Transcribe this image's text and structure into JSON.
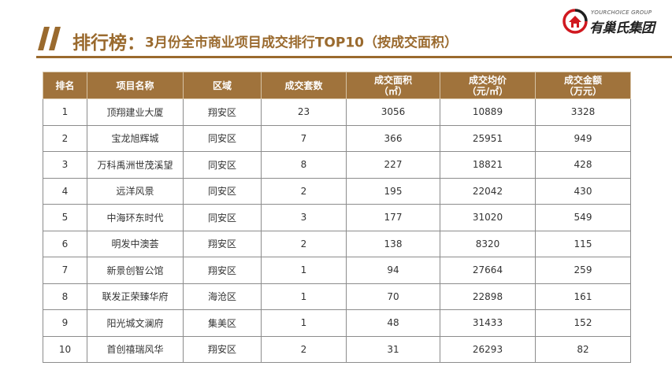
{
  "header": {
    "title_main": "排行榜：",
    "title_sub": "3月份全市商业项目成交排行TOP10（按成交面积）"
  },
  "logo": {
    "english": "YOURCHOICE GROUP",
    "chinese": "有巢氏集团"
  },
  "colors": {
    "brand": "#9a6a2e",
    "header_fill": "#a0733c",
    "logo_red": "#d0181f"
  },
  "table": {
    "columns": [
      {
        "line1": "排名",
        "line2": ""
      },
      {
        "line1": "项目名称",
        "line2": ""
      },
      {
        "line1": "区域",
        "line2": ""
      },
      {
        "line1": "成交套数",
        "line2": ""
      },
      {
        "line1": "成交面积",
        "line2": "（㎡）"
      },
      {
        "line1": "成交均价",
        "line2": "（元/㎡）"
      },
      {
        "line1": "成交金额",
        "line2": "（万元）"
      }
    ],
    "rows": [
      [
        "1",
        "顶翔建业大厦",
        "翔安区",
        "23",
        "3056",
        "10889",
        "3328"
      ],
      [
        "2",
        "宝龙旭辉城",
        "同安区",
        "7",
        "366",
        "25951",
        "949"
      ],
      [
        "3",
        "万科禹洲世茂溪望",
        "同安区",
        "8",
        "227",
        "18821",
        "428"
      ],
      [
        "4",
        "远洋风景",
        "同安区",
        "2",
        "195",
        "22042",
        "430"
      ],
      [
        "5",
        "中海环东时代",
        "同安区",
        "3",
        "177",
        "31020",
        "549"
      ],
      [
        "6",
        "明发中澳荟",
        "翔安区",
        "2",
        "138",
        "8320",
        "115"
      ],
      [
        "7",
        "新景创智公馆",
        "翔安区",
        "1",
        "94",
        "27664",
        "259"
      ],
      [
        "8",
        "联发正荣臻华府",
        "海沧区",
        "1",
        "70",
        "22898",
        "161"
      ],
      [
        "9",
        "阳光城文澜府",
        "集美区",
        "1",
        "48",
        "31433",
        "152"
      ],
      [
        "10",
        "首创禧瑞风华",
        "翔安区",
        "2",
        "31",
        "26293",
        "82"
      ]
    ]
  }
}
